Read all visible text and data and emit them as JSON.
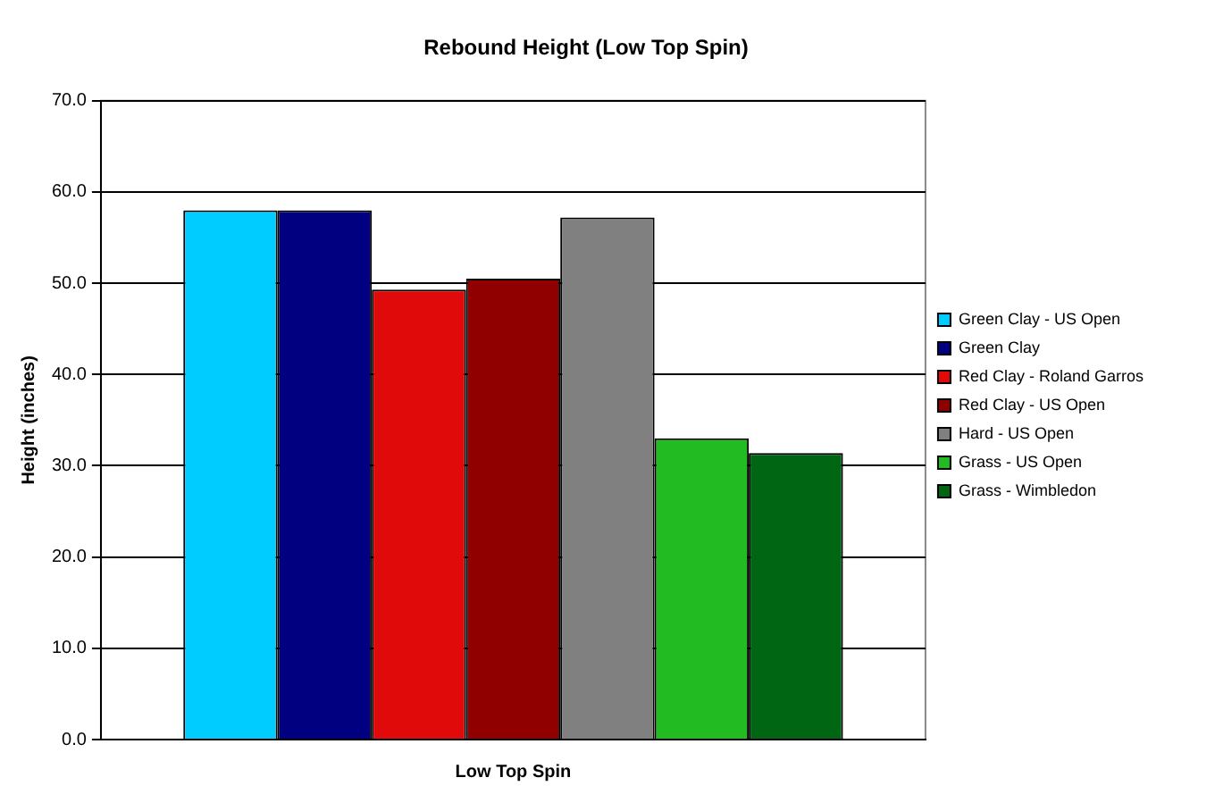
{
  "chart_data": {
    "type": "bar",
    "title": "Rebound Height (Low Top Spin)",
    "ylabel": "Height (inches)",
    "categories": [
      "Low Top Spin"
    ],
    "series": [
      {
        "name": "Green Clay - US Open",
        "color": "#00ccff",
        "values": [
          58.0
        ]
      },
      {
        "name": "Green Clay",
        "color": "#000080",
        "values": [
          58.0
        ]
      },
      {
        "name": "Red Clay - Roland Garros",
        "color": "#e00a0a",
        "values": [
          49.3
        ]
      },
      {
        "name": "Red Clay - US Open",
        "color": "#900000",
        "values": [
          50.5
        ]
      },
      {
        "name": "Hard - US Open",
        "color": "#808080",
        "values": [
          57.2
        ]
      },
      {
        "name": "Grass - US Open",
        "color": "#22bb22",
        "values": [
          33.0
        ]
      },
      {
        "name": "Grass - Wimbledon",
        "color": "#006614",
        "values": [
          31.4
        ]
      }
    ],
    "ylim": [
      0,
      70
    ],
    "yticks": [
      {
        "value": 0,
        "label": "0.0"
      },
      {
        "value": 10,
        "label": "10.0"
      },
      {
        "value": 20,
        "label": "20.0"
      },
      {
        "value": 30,
        "label": "30.0"
      },
      {
        "value": 40,
        "label": "40.0"
      },
      {
        "value": 50,
        "label": "50.0"
      },
      {
        "value": 60,
        "label": "60.0"
      },
      {
        "value": 70,
        "label": "70.0"
      }
    ],
    "grid": "y",
    "legend": "right"
  }
}
